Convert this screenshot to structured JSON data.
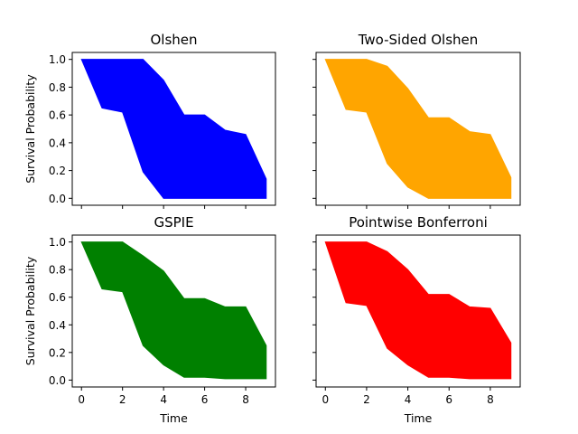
{
  "chart_data": [
    {
      "type": "area",
      "title": "Olshen",
      "xlabel": "",
      "ylabel": "Survival Probability",
      "xlim": [
        -0.45,
        9.45
      ],
      "ylim": [
        -0.05,
        1.05
      ],
      "xticks": [
        0,
        2,
        4,
        6,
        8
      ],
      "yticks": [
        0.0,
        0.2,
        0.4,
        0.6,
        0.8,
        1.0
      ],
      "ytick_labels": [
        "0.0",
        "0.2",
        "0.4",
        "0.6",
        "0.8",
        "1.0"
      ],
      "show_xtick_labels": false,
      "show_ytick_labels": true,
      "color": "#0000ff",
      "x": [
        0,
        1,
        2,
        3,
        4,
        5,
        6,
        7,
        8,
        9
      ],
      "upper": [
        1.0,
        1.0,
        1.0,
        1.0,
        0.85,
        0.6,
        0.6,
        0.49,
        0.46,
        0.14
      ],
      "lower": [
        1.0,
        0.65,
        0.62,
        0.19,
        0.0,
        0.0,
        0.0,
        0.0,
        0.0,
        0.0
      ]
    },
    {
      "type": "area",
      "title": "Two-Sided Olshen",
      "xlabel": "",
      "ylabel": "",
      "xlim": [
        -0.45,
        9.45
      ],
      "ylim": [
        -0.05,
        1.05
      ],
      "xticks": [
        0,
        2,
        4,
        6,
        8
      ],
      "yticks": [
        0.0,
        0.2,
        0.4,
        0.6,
        0.8,
        1.0
      ],
      "ytick_labels": [
        "0.0",
        "0.2",
        "0.4",
        "0.6",
        "0.8",
        "1.0"
      ],
      "show_xtick_labels": false,
      "show_ytick_labels": false,
      "color": "#ffa500",
      "x": [
        0,
        1,
        2,
        3,
        4,
        5,
        6,
        7,
        8,
        9
      ],
      "upper": [
        1.0,
        1.0,
        1.0,
        0.95,
        0.79,
        0.58,
        0.58,
        0.48,
        0.46,
        0.15
      ],
      "lower": [
        1.0,
        0.64,
        0.62,
        0.25,
        0.08,
        0.0,
        0.0,
        0.0,
        0.0,
        0.0
      ]
    },
    {
      "type": "area",
      "title": "GSPIE",
      "xlabel": "Time",
      "ylabel": "Survival Probability",
      "xlim": [
        -0.45,
        9.45
      ],
      "ylim": [
        -0.05,
        1.05
      ],
      "xticks": [
        0,
        2,
        4,
        6,
        8
      ],
      "xtick_labels": [
        "0",
        "2",
        "4",
        "6",
        "8"
      ],
      "yticks": [
        0.0,
        0.2,
        0.4,
        0.6,
        0.8,
        1.0
      ],
      "ytick_labels": [
        "0.0",
        "0.2",
        "0.4",
        "0.6",
        "0.8",
        "1.0"
      ],
      "show_xtick_labels": true,
      "show_ytick_labels": true,
      "color": "#008000",
      "x": [
        0,
        1,
        2,
        3,
        4,
        5,
        6,
        7,
        8,
        9
      ],
      "upper": [
        1.0,
        1.0,
        1.0,
        0.9,
        0.79,
        0.59,
        0.59,
        0.53,
        0.53,
        0.25
      ],
      "lower": [
        1.0,
        0.66,
        0.64,
        0.25,
        0.11,
        0.02,
        0.02,
        0.01,
        0.01,
        0.01
      ]
    },
    {
      "type": "area",
      "title": "Pointwise Bonferroni",
      "xlabel": "Time",
      "ylabel": "",
      "xlim": [
        -0.45,
        9.45
      ],
      "ylim": [
        -0.05,
        1.05
      ],
      "xticks": [
        0,
        2,
        4,
        6,
        8
      ],
      "xtick_labels": [
        "0",
        "2",
        "4",
        "6",
        "8"
      ],
      "yticks": [
        0.0,
        0.2,
        0.4,
        0.6,
        0.8,
        1.0
      ],
      "ytick_labels": [
        "0.0",
        "0.2",
        "0.4",
        "0.6",
        "0.8",
        "1.0"
      ],
      "show_xtick_labels": true,
      "show_ytick_labels": false,
      "color": "#ff0000",
      "x": [
        0,
        1,
        2,
        3,
        4,
        5,
        6,
        7,
        8,
        9
      ],
      "upper": [
        1.0,
        1.0,
        1.0,
        0.93,
        0.8,
        0.62,
        0.62,
        0.53,
        0.52,
        0.27
      ],
      "lower": [
        1.0,
        0.56,
        0.54,
        0.23,
        0.11,
        0.02,
        0.02,
        0.01,
        0.01,
        0.01
      ]
    }
  ]
}
